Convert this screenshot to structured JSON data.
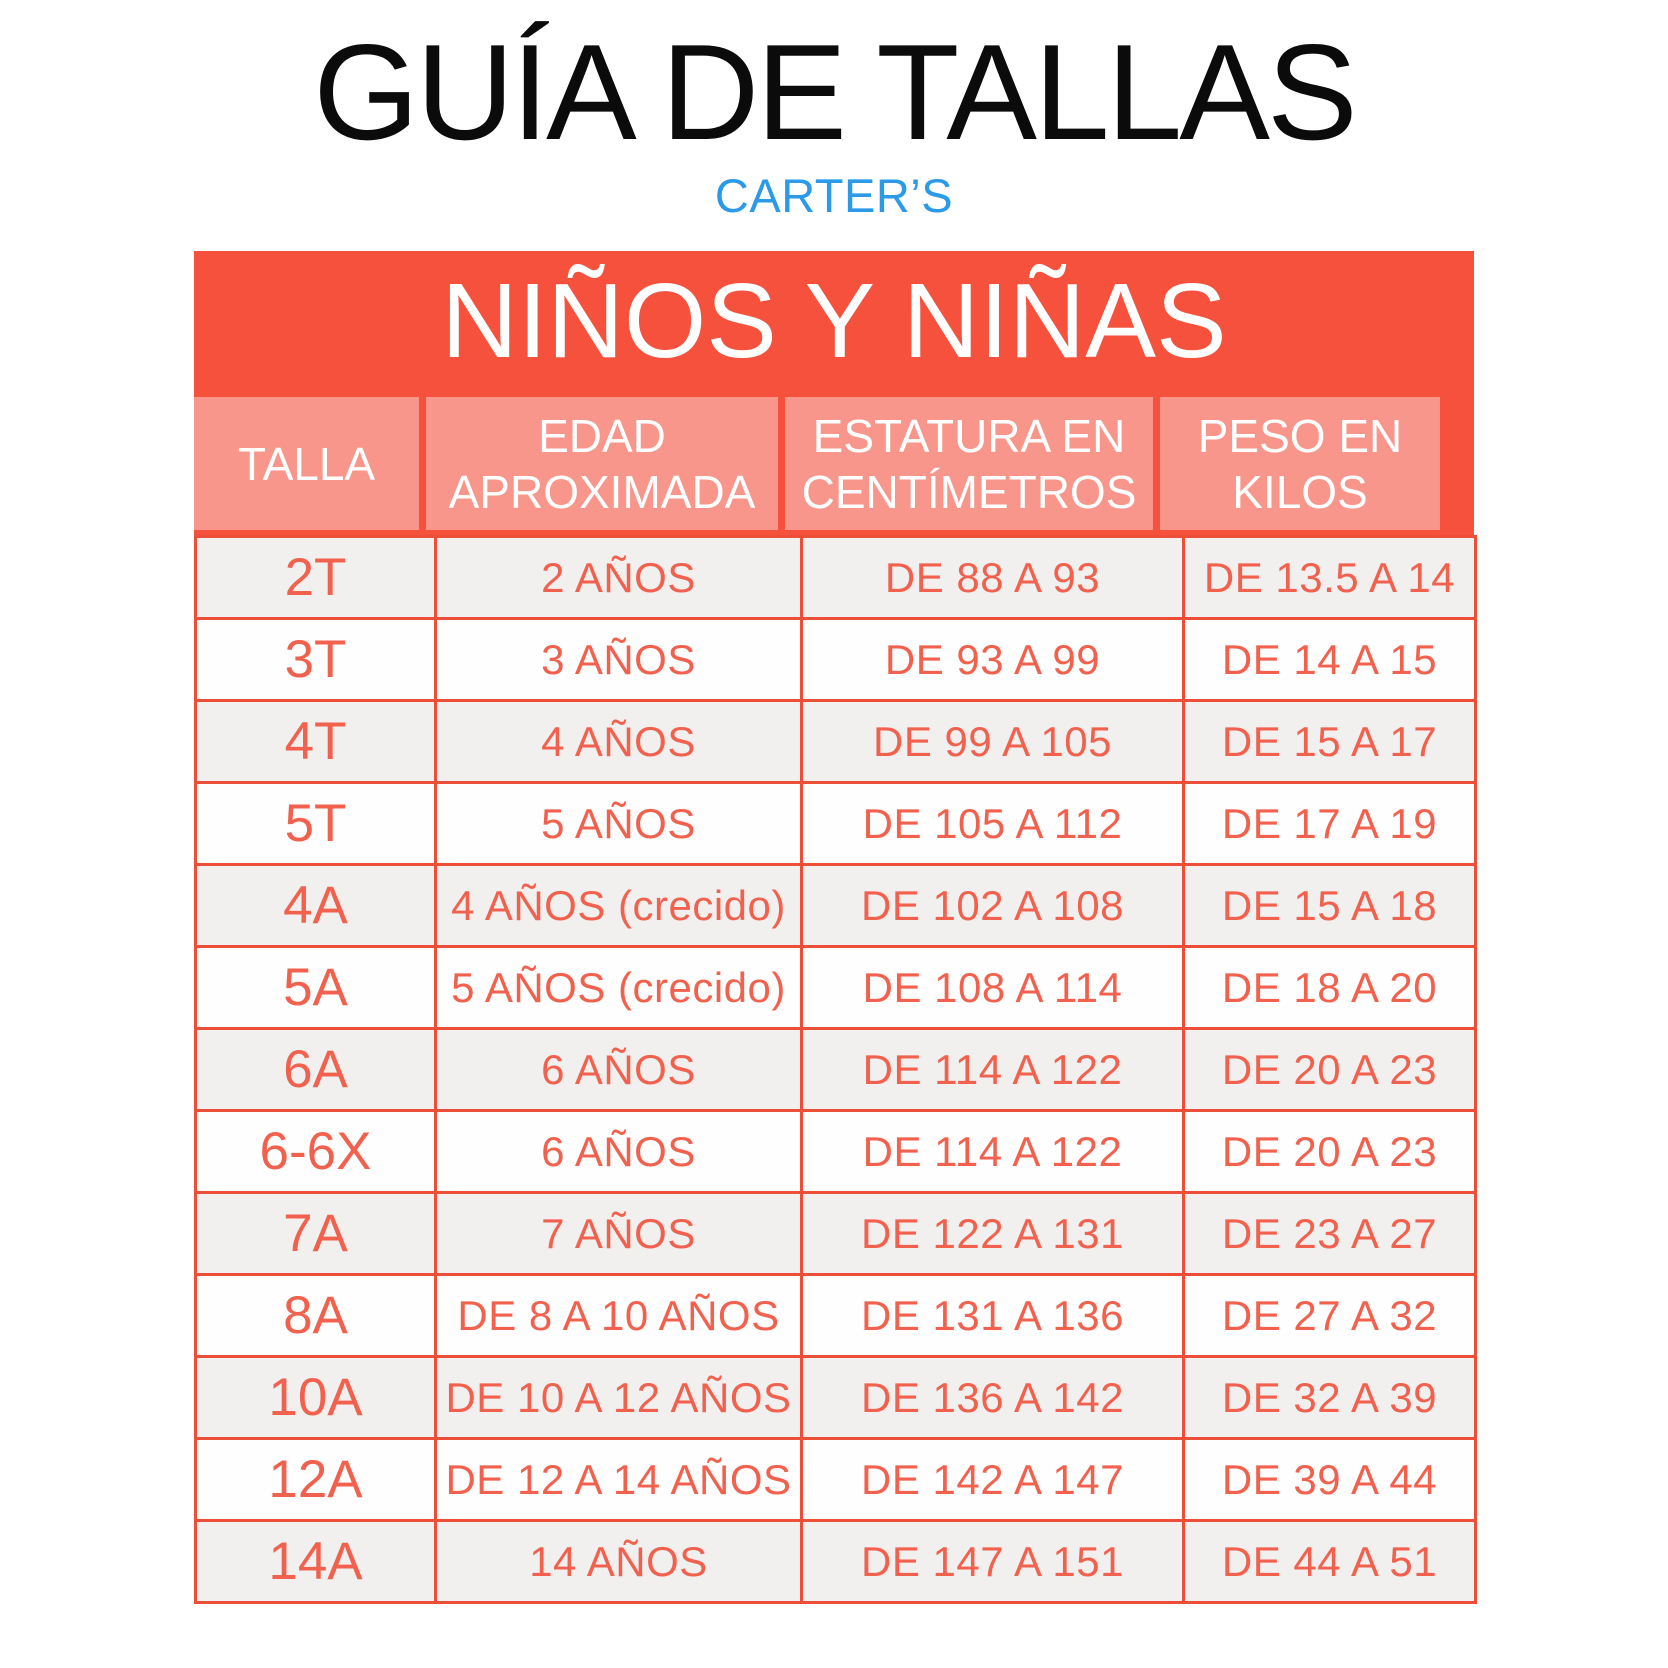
{
  "page": {
    "title": "GUÍA DE TALLAS",
    "brand": "CARTER’S"
  },
  "table": {
    "banner": "NIÑOS Y NIÑAS",
    "columns": [
      "TALLA",
      "EDAD APROXIMADA",
      "ESTATURA EN CENTÍMETROS",
      "PESO EN KILOS"
    ],
    "rows": [
      {
        "talla": "2T",
        "edad": "2 AÑOS",
        "estatura": "DE 88 A 93",
        "peso": "DE 13.5 A 14"
      },
      {
        "talla": "3T",
        "edad": "3 AÑOS",
        "estatura": "DE 93 A 99",
        "peso": "DE 14 A 15"
      },
      {
        "talla": "4T",
        "edad": "4 AÑOS",
        "estatura": "DE 99 A 105",
        "peso": "DE 15 A 17"
      },
      {
        "talla": "5T",
        "edad": "5 AÑOS",
        "estatura": "DE 105 A 112",
        "peso": "DE 17 A 19"
      },
      {
        "talla": "4A",
        "edad": "4 AÑOS (crecido)",
        "estatura": "DE 102 A 108",
        "peso": "DE 15 A 18"
      },
      {
        "talla": "5A",
        "edad": "5 AÑOS (crecido)",
        "estatura": "DE 108 A 114",
        "peso": "DE 18 A 20"
      },
      {
        "talla": "6A",
        "edad": "6 AÑOS",
        "estatura": "DE 114 A 122",
        "peso": "DE 20 A 23"
      },
      {
        "talla": "6-6X",
        "edad": "6 AÑOS",
        "estatura": "DE 114 A 122",
        "peso": "DE 20 A 23"
      },
      {
        "talla": "7A",
        "edad": "7 AÑOS",
        "estatura": "DE 122 A 131",
        "peso": "DE 23 A 27"
      },
      {
        "talla": "8A",
        "edad": "DE 8 A 10 AÑOS",
        "estatura": "DE 131 A 136",
        "peso": "DE 27 A 32"
      },
      {
        "talla": "10A",
        "edad": "DE 10 A 12 AÑOS",
        "estatura": "DE 136 A 142",
        "peso": "DE 32 A 39"
      },
      {
        "talla": "12A",
        "edad": "DE 12 A 14 AÑOS",
        "estatura": "DE 142 A 147",
        "peso": "DE 39 A 44"
      },
      {
        "talla": "14A",
        "edad": "14 AÑOS",
        "estatura": "DE 147 A 151",
        "peso": "DE 44 A 51"
      }
    ]
  },
  "colors": {
    "banner_red": "#f5513c",
    "header_salmon": "#f9968b",
    "border_red": "#ec4e38",
    "data_text_coral": "#f2614e",
    "row_gray": "#f1f0ee",
    "row_white": "#fefefe",
    "brand_blue": "#2b9ae9",
    "title_black": "#0b0b0b"
  }
}
